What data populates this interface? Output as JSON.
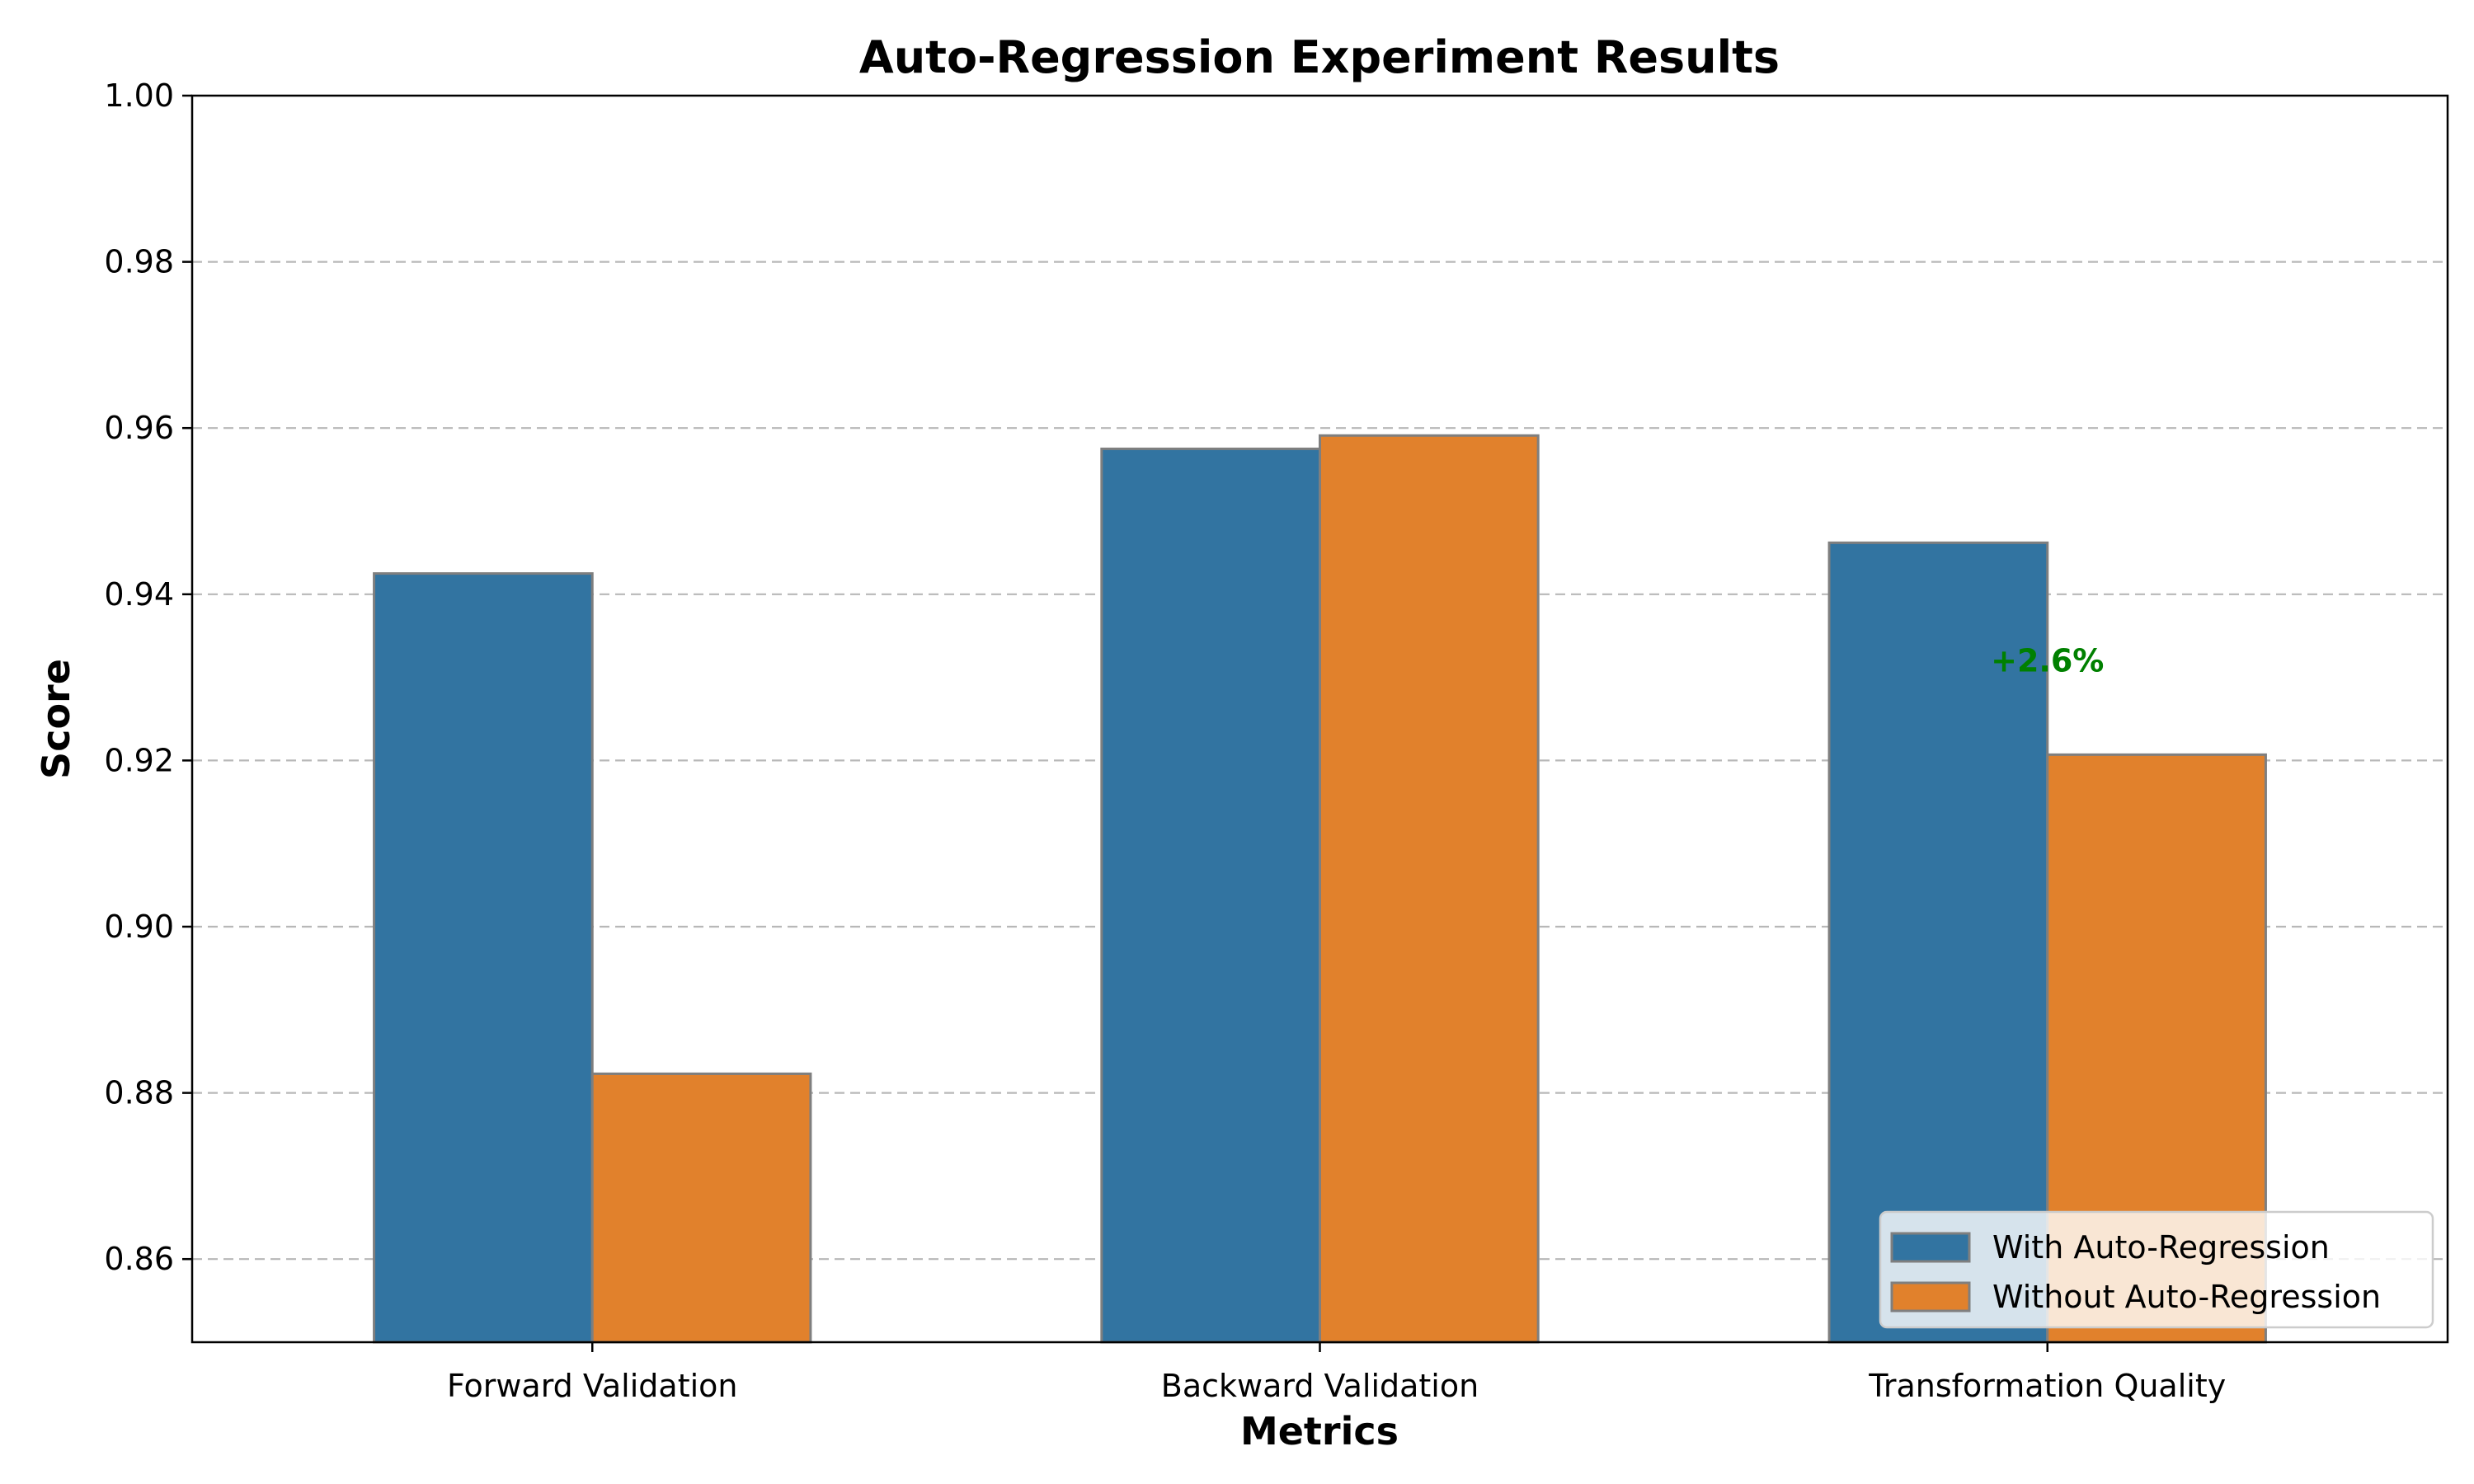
{
  "chart_data": {
    "type": "bar",
    "title": "Auto-Regression Experiment Results",
    "xlabel": "Metrics",
    "ylabel": "Score",
    "categories": [
      "Forward Validation",
      "Backward Validation",
      "Transformation Quality"
    ],
    "series": [
      {
        "name": "With Auto-Regression",
        "values": [
          0.9425,
          0.9575,
          0.9462
        ],
        "color": "#3274a1"
      },
      {
        "name": "Without Auto-Regression",
        "values": [
          0.8823,
          0.9591,
          0.9207
        ],
        "color": "#e1812c"
      }
    ],
    "ylim": [
      0.85,
      1.0
    ],
    "yticks": [
      "0.86",
      "0.88",
      "0.90",
      "0.92",
      "0.94",
      "0.96",
      "0.98",
      "1.00"
    ],
    "grid": "y-dashed",
    "legend_position": "lower-right",
    "annotations": [
      {
        "text": "+2.6%",
        "category_index": 2,
        "y": 0.932,
        "color": "#008000"
      }
    ]
  }
}
